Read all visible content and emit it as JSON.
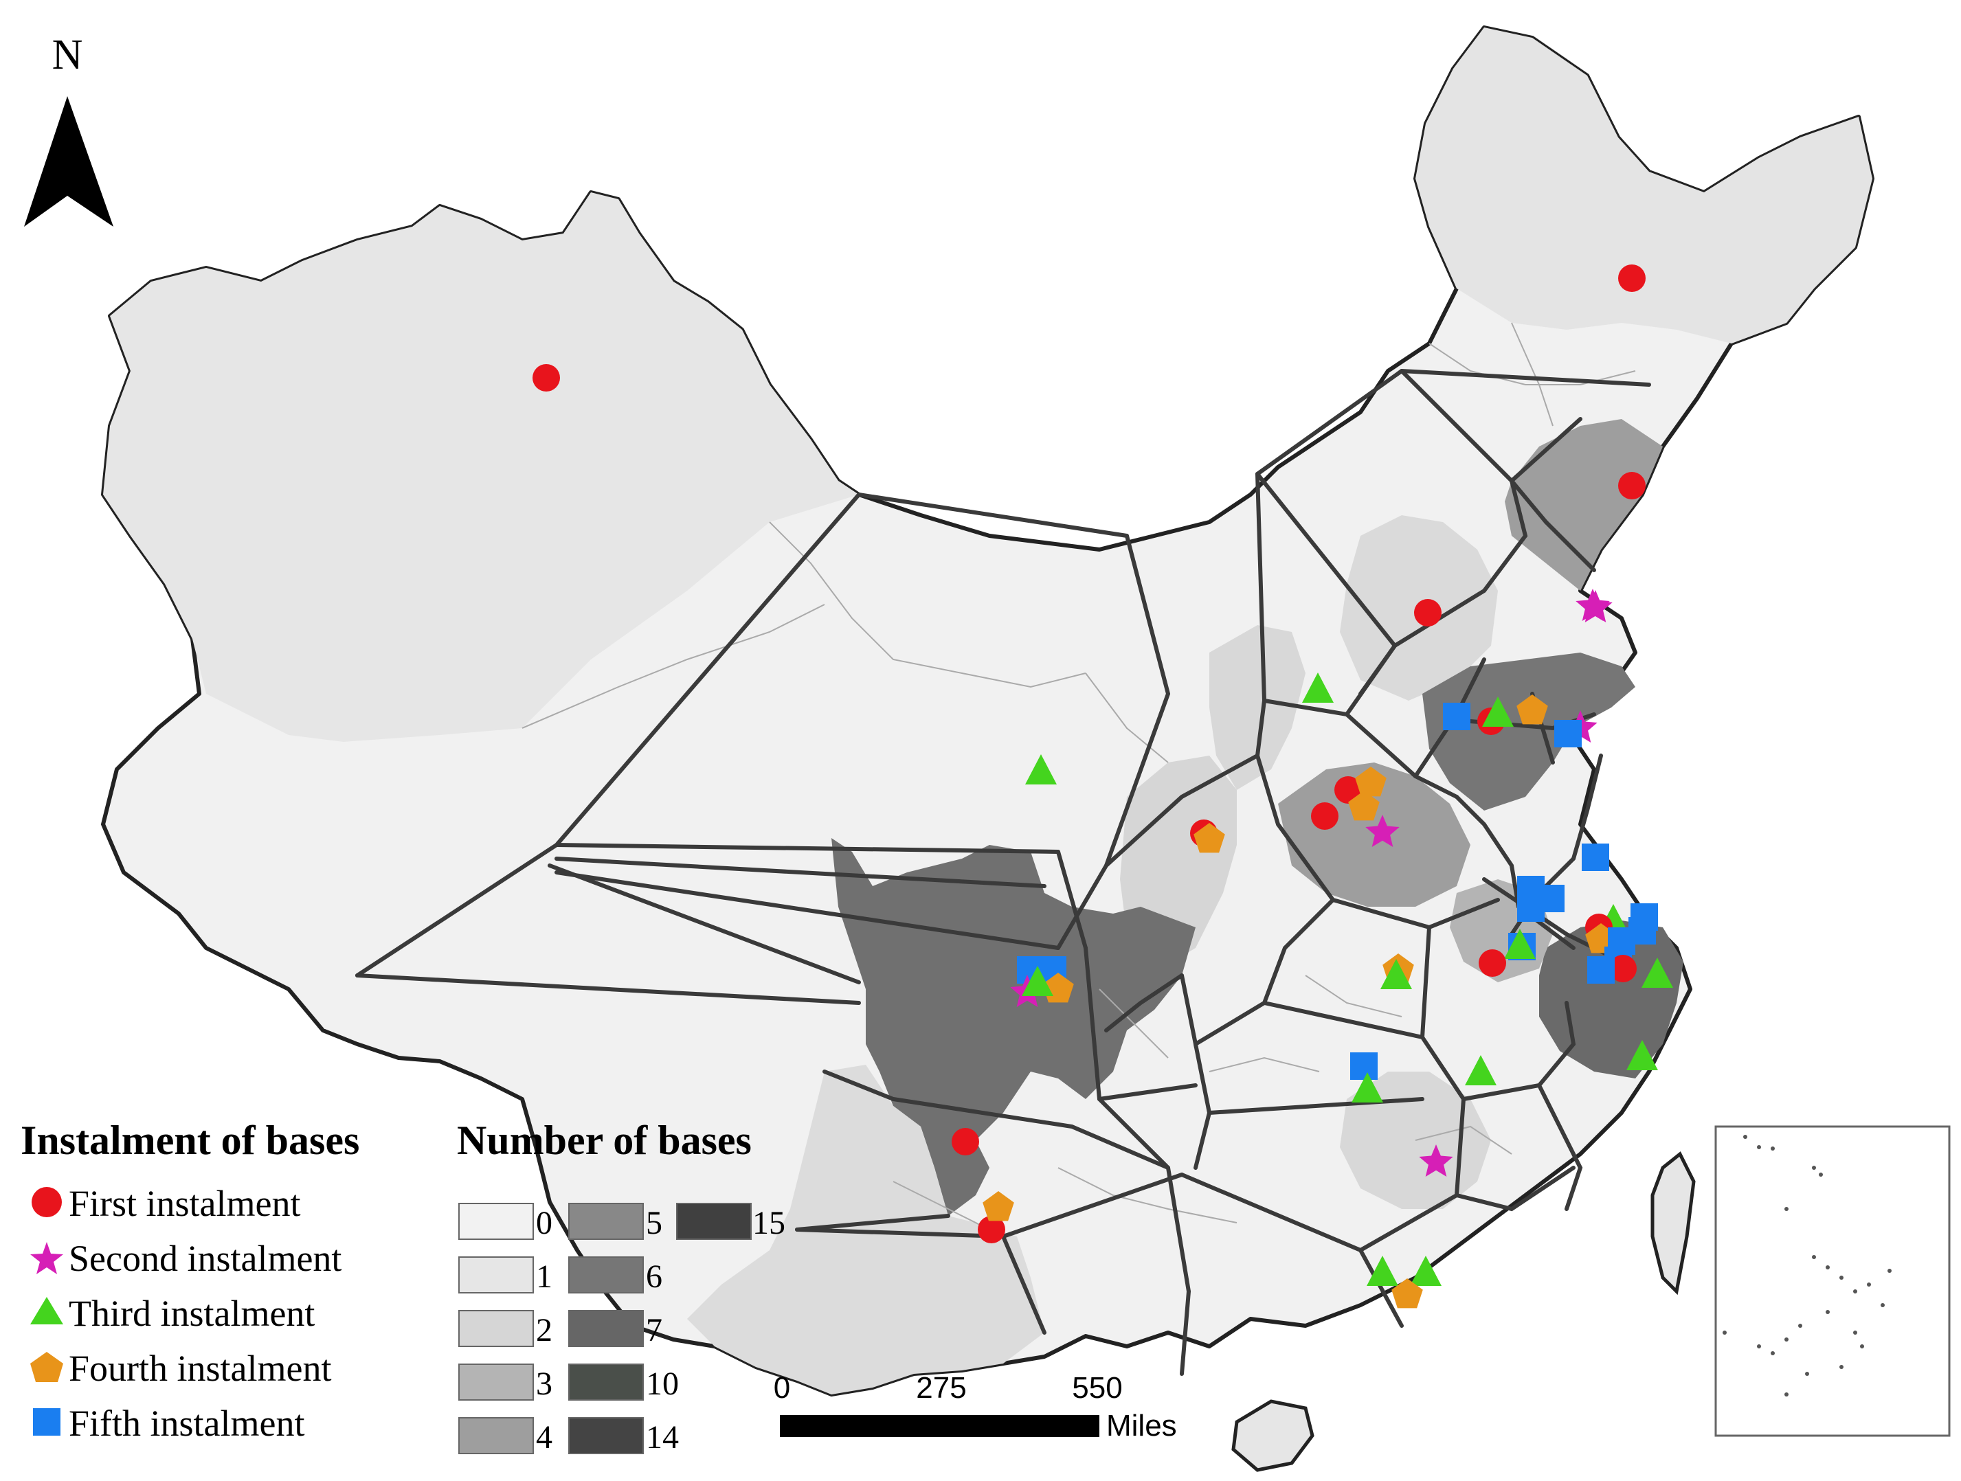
{
  "north_label": "N",
  "legend_instalment": {
    "title": "Instalment of bases",
    "items": [
      {
        "label": "First instalment",
        "symbol": "circle",
        "color": "#e8141c"
      },
      {
        "label": "Second instalment",
        "symbol": "star",
        "color": "#d61fb6"
      },
      {
        "label": "Third instalment",
        "symbol": "triangle",
        "color": "#44d41e"
      },
      {
        "label": "Fourth instalment",
        "symbol": "pentagon",
        "color": "#e8941a"
      },
      {
        "label": "Fifth instalment",
        "symbol": "square",
        "color": "#1a7ef0"
      }
    ]
  },
  "legend_count": {
    "title": "Number of bases",
    "classes": [
      {
        "label": "0",
        "color": "#f2f2f2"
      },
      {
        "label": "1",
        "color": "#e6e6e6"
      },
      {
        "label": "2",
        "color": "#d6d6d6"
      },
      {
        "label": "3",
        "color": "#b4b4b4"
      },
      {
        "label": "4",
        "color": "#9e9e9e"
      },
      {
        "label": "5",
        "color": "#888888"
      },
      {
        "label": "6",
        "color": "#767676"
      },
      {
        "label": "7",
        "color": "#666666"
      },
      {
        "label": "10",
        "color": "#4a4f4a"
      },
      {
        "label": "14",
        "color": "#444444"
      },
      {
        "label": "15",
        "color": "#404040"
      }
    ]
  },
  "scale_bar": {
    "tick_labels": [
      "0",
      "275",
      "550"
    ],
    "unit": "Miles"
  }
}
